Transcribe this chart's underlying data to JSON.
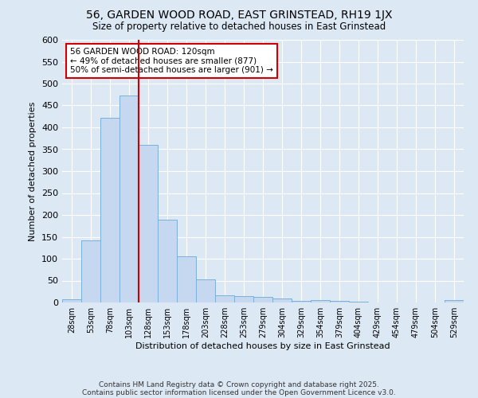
{
  "title1": "56, GARDEN WOOD ROAD, EAST GRINSTEAD, RH19 1JX",
  "title2": "Size of property relative to detached houses in East Grinstead",
  "xlabel": "Distribution of detached houses by size in East Grinstead",
  "ylabel": "Number of detached properties",
  "bar_labels": [
    "28sqm",
    "53sqm",
    "78sqm",
    "103sqm",
    "128sqm",
    "153sqm",
    "178sqm",
    "203sqm",
    "228sqm",
    "253sqm",
    "279sqm",
    "304sqm",
    "329sqm",
    "354sqm",
    "379sqm",
    "404sqm",
    "429sqm",
    "454sqm",
    "479sqm",
    "504sqm",
    "529sqm"
  ],
  "bar_values": [
    8,
    142,
    422,
    472,
    360,
    190,
    105,
    53,
    17,
    15,
    13,
    9,
    4,
    5,
    4,
    1,
    0,
    0,
    0,
    0,
    5
  ],
  "bar_color": "#c5d8f0",
  "bar_edge_color": "#7ab0d8",
  "background_color": "#dde8f5",
  "grid_color": "#ffffff",
  "annotation_line_color": "#cc0000",
  "annotation_box_text": "56 GARDEN WOOD ROAD: 120sqm\n← 49% of detached houses are smaller (877)\n50% of semi-detached houses are larger (901) →",
  "annotation_box_color": "#ffffff",
  "annotation_box_border": "#cc0000",
  "ylim": [
    0,
    600
  ],
  "yticks": [
    0,
    50,
    100,
    150,
    200,
    250,
    300,
    350,
    400,
    450,
    500,
    550,
    600
  ],
  "footer1": "Contains HM Land Registry data © Crown copyright and database right 2025.",
  "footer2": "Contains public sector information licensed under the Open Government Licence v3.0."
}
